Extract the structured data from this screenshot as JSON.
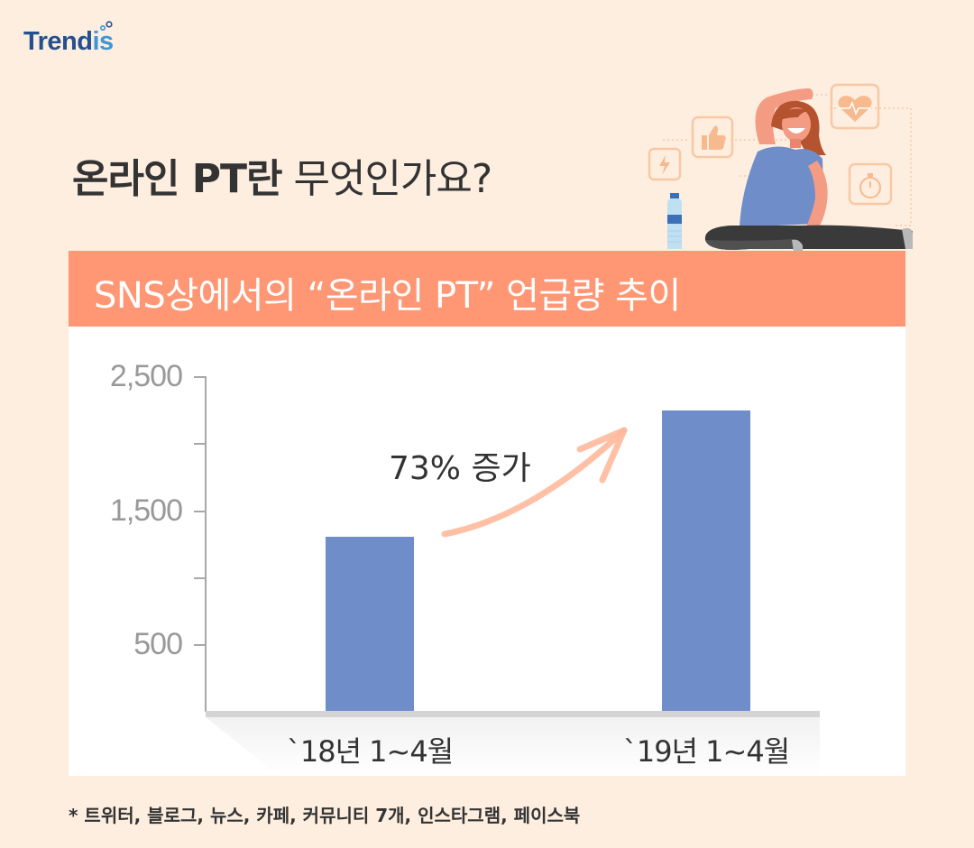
{
  "logo": {
    "text_main": "Trend",
    "text_accent": "is"
  },
  "title": {
    "bold": "온라인 PT란",
    "light": " 무엇인가요?"
  },
  "banner": {
    "text": "SNS상에서의 “온라인 PT” 언급량 추이"
  },
  "annotation": {
    "text": "73% 증가"
  },
  "footnote": {
    "text": "* 트위터, 블로그, 뉴스, 카페, 커뮤니티 7개, 인스타그램, 페이스북"
  },
  "illustration": {
    "icons": [
      "lightning-icon",
      "thumbs-up-icon",
      "heart-rate-icon",
      "stopwatch-icon",
      "water-bottle"
    ]
  },
  "colors": {
    "bar": "#6e8dc9",
    "banner": "#ff9774",
    "background": "#fdeee0",
    "arrow": "#ffb99c",
    "logo_dark": "#23508f",
    "logo_light": "#3c95d6"
  },
  "chart_data": {
    "type": "bar",
    "title": "SNS상에서의 “온라인 PT” 언급량 추이",
    "categories": [
      "`18년 1~4월",
      "`19년 1~4월"
    ],
    "values": [
      1300,
      2245
    ],
    "xlabel": "",
    "ylabel": "",
    "ylim": [
      0,
      2500
    ],
    "yticks": [
      500,
      1000,
      1500,
      2000,
      2500
    ],
    "ytick_labels": [
      "500",
      "",
      "1,500",
      "",
      "2,500"
    ],
    "grid": false,
    "legend": null,
    "annotations": [
      {
        "text": "73% 증가",
        "type": "arrow",
        "from": "`18년 1~4월",
        "to": "`19년 1~4월"
      }
    ]
  },
  "axis": {
    "y_labels": [
      {
        "text": "2,500",
        "top": 398
      },
      {
        "text": "1,500",
        "top": 547
      },
      {
        "text": "500",
        "top": 695
      }
    ]
  }
}
